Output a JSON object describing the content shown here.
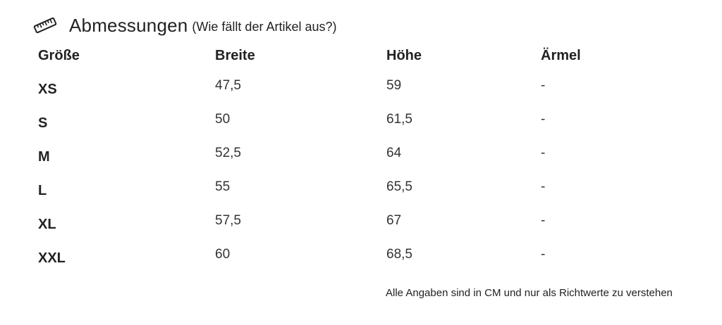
{
  "header": {
    "icon": "ruler-icon",
    "title": "Abmessungen",
    "subtitle": "(Wie fällt der Artikel aus?)"
  },
  "table": {
    "columns": [
      "Größe",
      "Breite",
      "Höhe",
      "Ärmel"
    ],
    "rows": [
      [
        "XS",
        "47,5",
        "59",
        "-"
      ],
      [
        "S",
        "50",
        "61,5",
        "-"
      ],
      [
        "M",
        "52,5",
        "64",
        "-"
      ],
      [
        "L",
        "55",
        "65,5",
        "-"
      ],
      [
        "XL",
        "57,5",
        "67",
        "-"
      ],
      [
        "XXL",
        "60",
        "68,5",
        "-"
      ]
    ]
  },
  "footnote": "Alle Angaben sind in CM und nur als Richtwerte zu verstehen"
}
